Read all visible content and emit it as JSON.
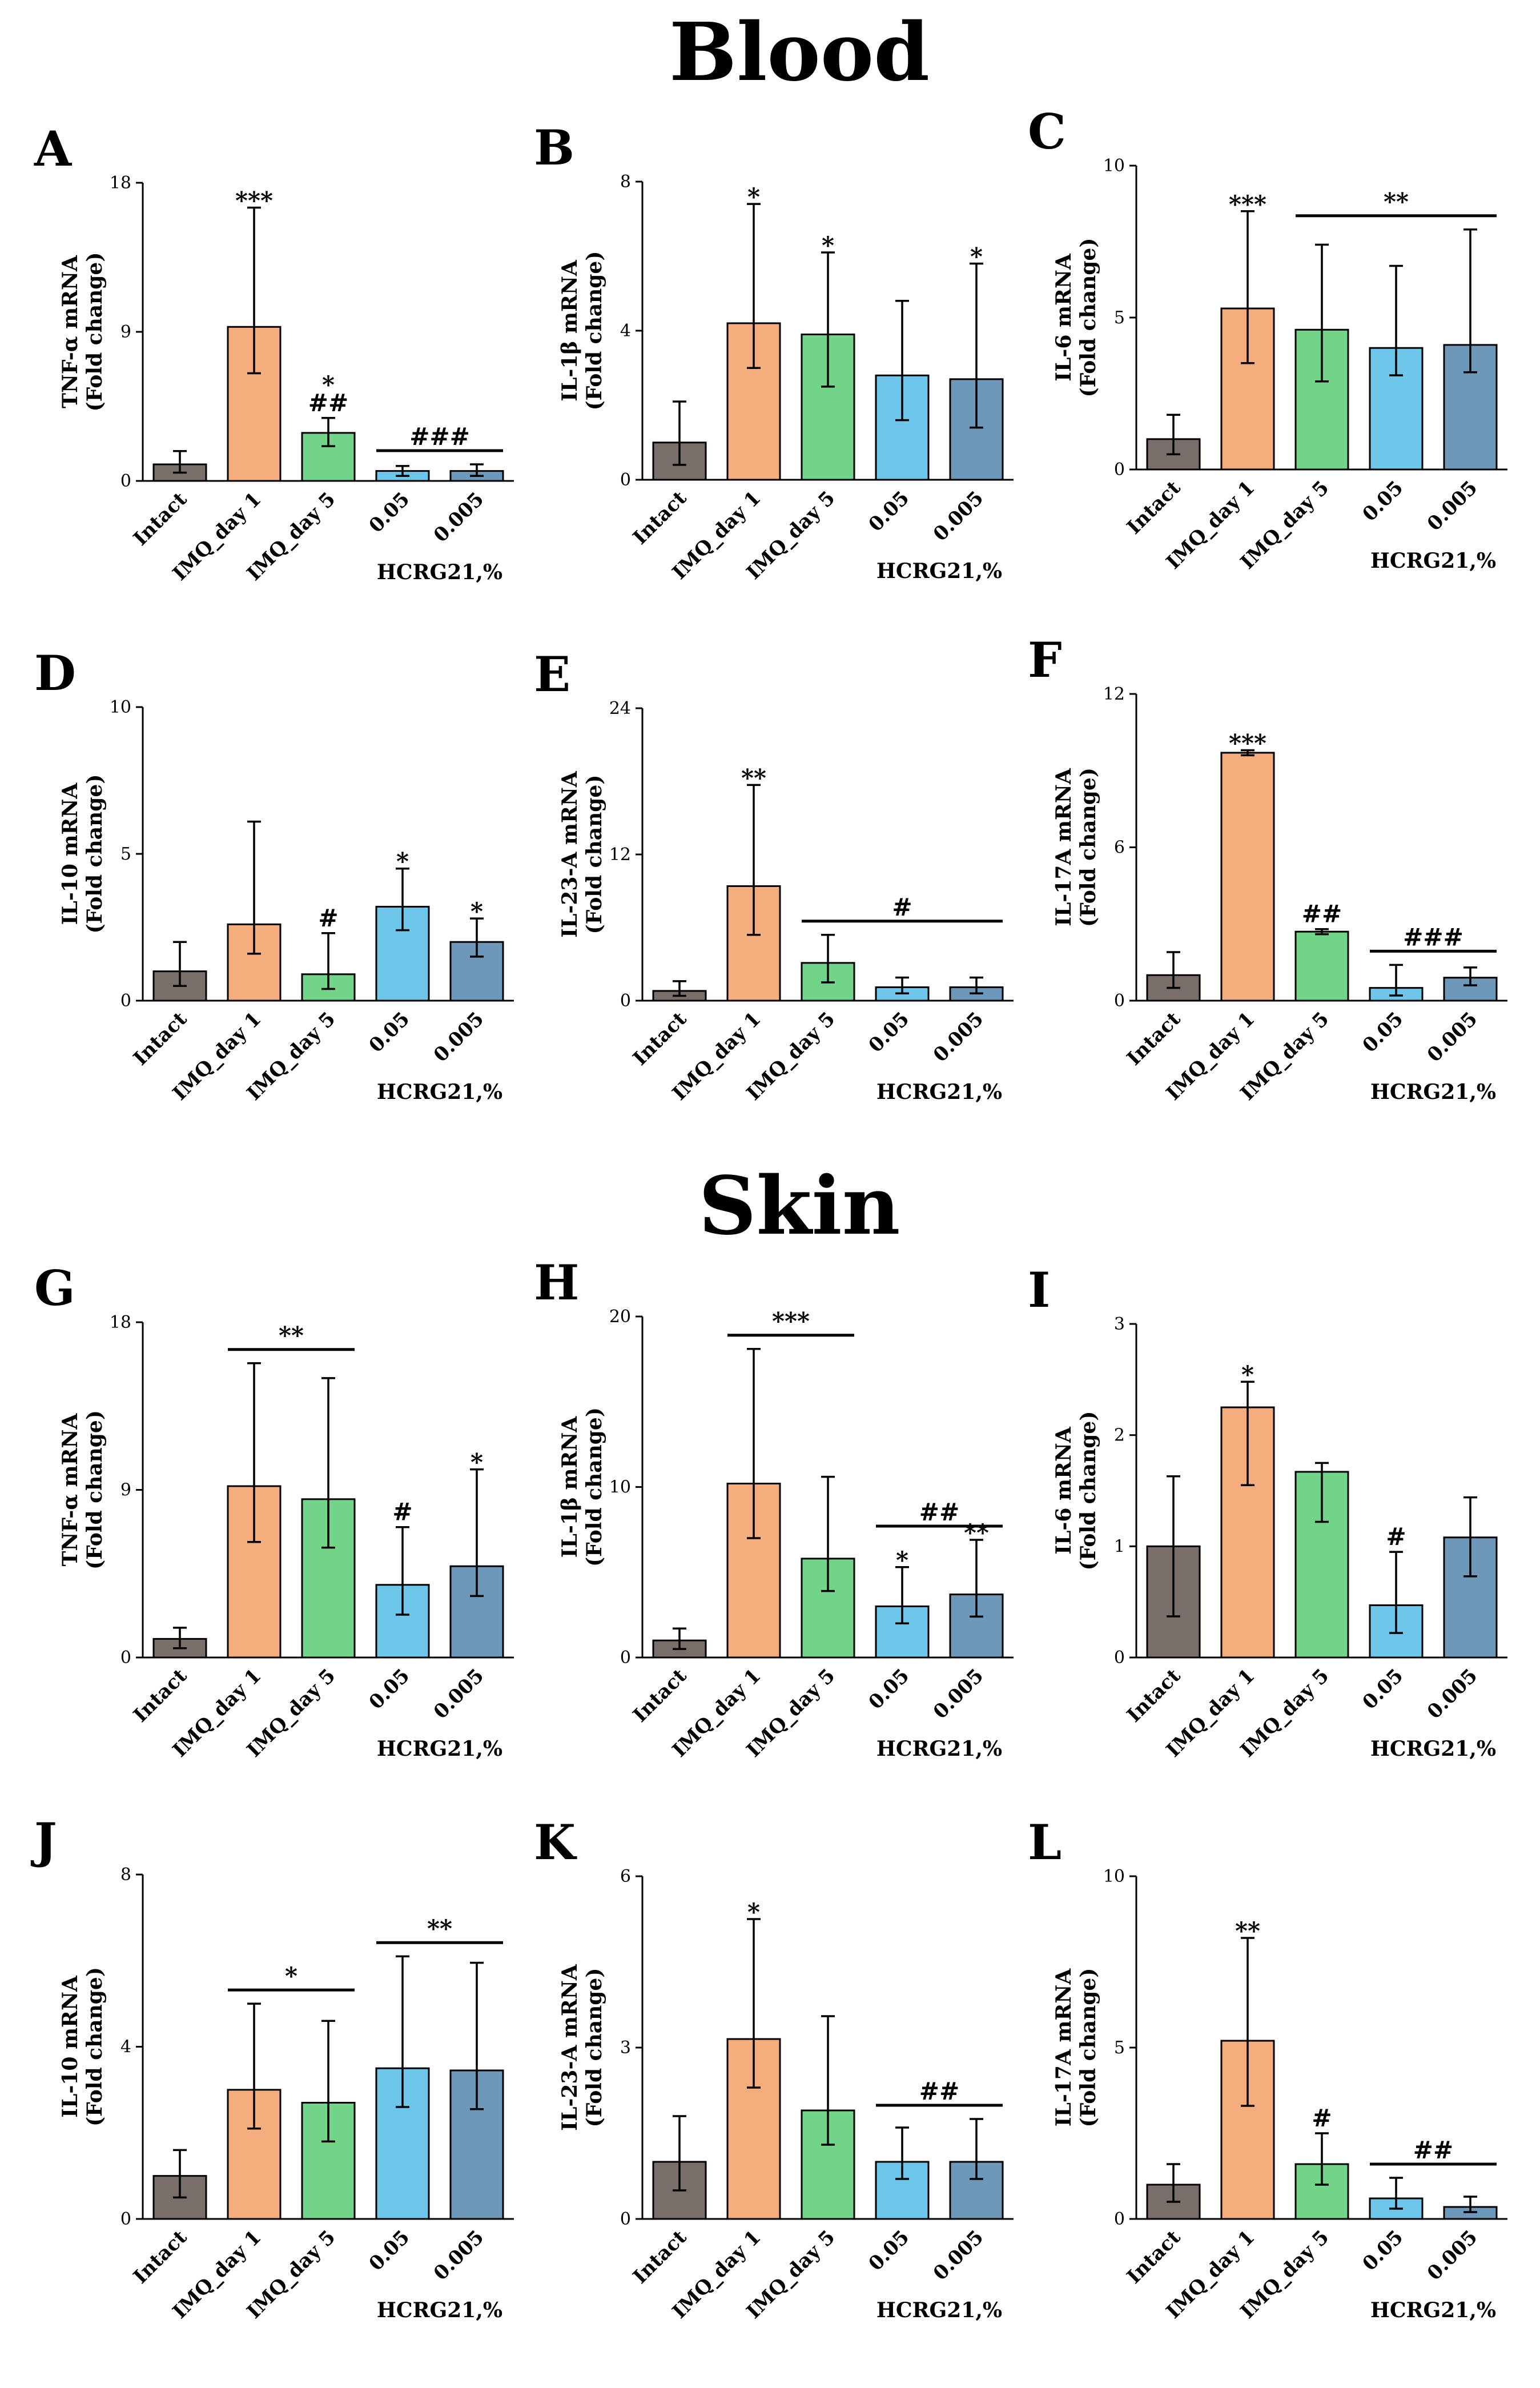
{
  "sections": [
    {
      "title": "Blood"
    },
    {
      "title": "Skin"
    }
  ],
  "chart_data": [
    {
      "panel": "A",
      "type": "bar",
      "ylabel_line1": "TNF-α mRNA",
      "ylabel_line2": "(Fold change)",
      "categories": [
        "Intact",
        "IMQ_day 1",
        "IMQ_day 5",
        "0.05",
        "0.005"
      ],
      "group_label": "HCRG21,%",
      "values": [
        1.0,
        9.3,
        2.9,
        0.6,
        0.6
      ],
      "err_low": [
        0.5,
        2.8,
        0.8,
        0.3,
        0.3
      ],
      "err_high": [
        0.8,
        7.2,
        0.9,
        0.3,
        0.4
      ],
      "ylim": [
        0,
        18
      ],
      "yticks": [
        "0",
        "9",
        "18"
      ],
      "stars": [
        "",
        "***",
        "*",
        "",
        ""
      ],
      "hashes": [
        "",
        "",
        "##",
        "",
        ""
      ],
      "brackets": [
        {
          "from": 3,
          "to": 4,
          "label": "###"
        }
      ]
    },
    {
      "panel": "B",
      "type": "bar",
      "ylabel_line1": "IL-1β mRNA",
      "ylabel_line2": "(Fold change)",
      "categories": [
        "Intact",
        "IMQ_day 1",
        "IMQ_day 5",
        "0.05",
        "0.005"
      ],
      "group_label": "HCRG21,%",
      "values": [
        1.0,
        4.2,
        3.9,
        2.8,
        2.7
      ],
      "err_low": [
        0.6,
        1.2,
        1.4,
        1.2,
        1.3
      ],
      "err_high": [
        1.1,
        3.2,
        2.2,
        2.0,
        3.1
      ],
      "ylim": [
        0,
        8
      ],
      "yticks": [
        "0",
        "4",
        "8"
      ],
      "stars": [
        "",
        "*",
        "*",
        "",
        "*"
      ],
      "hashes": [
        "",
        "",
        "",
        "",
        ""
      ],
      "brackets": []
    },
    {
      "panel": "C",
      "type": "bar",
      "ylabel_line1": "IL-6 mRNA",
      "ylabel_line2": "(Fold change)",
      "categories": [
        "Intact",
        "IMQ_day 1",
        "IMQ_day 5",
        "0.05",
        "0.005"
      ],
      "group_label": "HCRG21,%",
      "values": [
        1.0,
        5.3,
        4.6,
        4.0,
        4.1
      ],
      "err_low": [
        0.5,
        1.8,
        1.7,
        0.9,
        0.9
      ],
      "err_high": [
        0.8,
        3.2,
        2.8,
        2.7,
        3.8
      ],
      "ylim": [
        0,
        10
      ],
      "yticks": [
        "0",
        "5",
        "10"
      ],
      "stars": [
        "",
        "***",
        "",
        "",
        ""
      ],
      "hashes": [
        "",
        "",
        "",
        "",
        ""
      ],
      "brackets": [
        {
          "from": 2,
          "to": 4,
          "label": "**"
        }
      ]
    },
    {
      "panel": "D",
      "type": "bar",
      "ylabel_line1": "IL-10 mRNA",
      "ylabel_line2": "(Fold change)",
      "categories": [
        "Intact",
        "IMQ_day 1",
        "IMQ_day 5",
        "0.05",
        "0.005"
      ],
      "group_label": "HCRG21,%",
      "values": [
        1.0,
        2.6,
        0.9,
        3.2,
        2.0
      ],
      "err_low": [
        0.5,
        1.0,
        0.5,
        0.8,
        0.5
      ],
      "err_high": [
        1.0,
        3.5,
        1.4,
        1.3,
        0.8
      ],
      "ylim": [
        0,
        10
      ],
      "yticks": [
        "0",
        "5",
        "10"
      ],
      "stars": [
        "",
        "",
        "",
        "*",
        "*"
      ],
      "hashes": [
        "",
        "",
        "#",
        "",
        ""
      ],
      "brackets": []
    },
    {
      "panel": "E",
      "type": "bar",
      "ylabel_line1": "IL-23-A mRNA",
      "ylabel_line2": "(Fold change)",
      "categories": [
        "Intact",
        "IMQ_day 1",
        "IMQ_day 5",
        "0.05",
        "0.005"
      ],
      "group_label": "HCRG21,%",
      "values": [
        0.8,
        9.4,
        3.1,
        1.1,
        1.1
      ],
      "err_low": [
        0.4,
        4.0,
        1.6,
        0.5,
        0.5
      ],
      "err_high": [
        0.8,
        8.3,
        2.3,
        0.8,
        0.8
      ],
      "ylim": [
        0,
        24
      ],
      "yticks": [
        "0",
        "12",
        "24"
      ],
      "stars": [
        "",
        "**",
        "",
        "",
        ""
      ],
      "hashes": [
        "",
        "",
        "",
        "",
        ""
      ],
      "brackets": [
        {
          "from": 2,
          "to": 4,
          "label": "#"
        }
      ]
    },
    {
      "panel": "F",
      "type": "bar",
      "ylabel_line1": "IL-17A mRNA",
      "ylabel_line2": "(Fold change)",
      "categories": [
        "Intact",
        "IMQ_day 1",
        "IMQ_day 5",
        "0.05",
        "0.005"
      ],
      "group_label": "HCRG21,%",
      "values": [
        1.0,
        9.7,
        2.7,
        0.5,
        0.9
      ],
      "err_low": [
        0.5,
        0.1,
        0.1,
        0.3,
        0.3
      ],
      "err_high": [
        0.9,
        0.1,
        0.1,
        0.9,
        0.4
      ],
      "ylim": [
        0,
        12
      ],
      "yticks": [
        "0",
        "6",
        "12"
      ],
      "stars": [
        "",
        "***",
        "",
        "",
        ""
      ],
      "hashes": [
        "",
        "",
        "##",
        "",
        ""
      ],
      "brackets": [
        {
          "from": 3,
          "to": 4,
          "label": "###"
        }
      ]
    },
    {
      "panel": "G",
      "type": "bar",
      "ylabel_line1": "TNF-α mRNA",
      "ylabel_line2": "(Fold change)",
      "categories": [
        "Intact",
        "IMQ_day 1",
        "IMQ_day 5",
        "0.05",
        "0.005"
      ],
      "group_label": "HCRG21,%",
      "values": [
        1.0,
        9.2,
        8.5,
        3.9,
        4.9
      ],
      "err_low": [
        0.5,
        3.0,
        2.6,
        1.6,
        1.6
      ],
      "err_high": [
        0.6,
        6.6,
        6.5,
        3.1,
        5.2
      ],
      "ylim": [
        0,
        18
      ],
      "yticks": [
        "0",
        "9",
        "18"
      ],
      "stars": [
        "",
        "",
        "",
        "",
        "*"
      ],
      "hashes": [
        "",
        "",
        "",
        "#",
        ""
      ],
      "brackets": [
        {
          "from": 1,
          "to": 2,
          "label": "**"
        }
      ]
    },
    {
      "panel": "H",
      "type": "bar",
      "ylabel_line1": "IL-1β mRNA",
      "ylabel_line2": "(Fold change)",
      "categories": [
        "Intact",
        "IMQ_day 1",
        "IMQ_day 5",
        "0.05",
        "0.005"
      ],
      "group_label": "HCRG21,%",
      "values": [
        1.0,
        10.2,
        5.8,
        3.0,
        3.7
      ],
      "err_low": [
        0.5,
        3.2,
        1.9,
        1.0,
        1.3
      ],
      "err_high": [
        0.7,
        7.9,
        4.8,
        2.3,
        3.2
      ],
      "ylim": [
        0,
        20
      ],
      "yticks": [
        "0",
        "10",
        "20"
      ],
      "stars": [
        "",
        "",
        "",
        "*",
        "**"
      ],
      "hashes": [
        "",
        "",
        "",
        "",
        ""
      ],
      "brackets": [
        {
          "from": 1,
          "to": 2,
          "label": "***"
        },
        {
          "from": 3,
          "to": 4,
          "label": "##"
        }
      ]
    },
    {
      "panel": "I",
      "type": "bar",
      "ylabel_line1": "IL-6 mRNA",
      "ylabel_line2": "(Fold change)",
      "categories": [
        "Intact",
        "IMQ_day 1",
        "IMQ_day 5",
        "0.05",
        "0.005"
      ],
      "group_label": "HCRG21,%",
      "values": [
        1.0,
        2.25,
        1.67,
        0.47,
        1.08
      ],
      "err_low": [
        0.63,
        0.7,
        0.45,
        0.25,
        0.35
      ],
      "err_high": [
        0.63,
        0.23,
        0.08,
        0.48,
        0.36
      ],
      "ylim": [
        0,
        3
      ],
      "yticks": [
        "0",
        "1",
        "2",
        "3"
      ],
      "stars": [
        "",
        "*",
        "",
        "",
        ""
      ],
      "hashes": [
        "",
        "",
        "",
        "#",
        ""
      ],
      "brackets": []
    },
    {
      "panel": "J",
      "type": "bar",
      "ylabel_line1": "IL-10 mRNA",
      "ylabel_line2": "(Fold change)",
      "categories": [
        "Intact",
        "IMQ_day 1",
        "IMQ_day 5",
        "0.05",
        "0.005"
      ],
      "group_label": "HCRG21,%",
      "values": [
        1.0,
        3.0,
        2.7,
        3.5,
        3.45
      ],
      "err_low": [
        0.5,
        0.9,
        0.9,
        0.9,
        0.9
      ],
      "err_high": [
        0.6,
        2.0,
        1.9,
        2.6,
        2.5
      ],
      "ylim": [
        0,
        8
      ],
      "yticks": [
        "0",
        "4",
        "8"
      ],
      "stars": [
        "",
        "",
        "",
        "",
        ""
      ],
      "hashes": [
        "",
        "",
        "",
        "",
        ""
      ],
      "brackets": [
        {
          "from": 1,
          "to": 2,
          "label": "*"
        },
        {
          "from": 3,
          "to": 4,
          "label": "**"
        }
      ]
    },
    {
      "panel": "K",
      "type": "bar",
      "ylabel_line1": "IL-23-A mRNA",
      "ylabel_line2": "(Fold change)",
      "categories": [
        "Intact",
        "IMQ_day 1",
        "IMQ_day 5",
        "0.05",
        "0.005"
      ],
      "group_label": "HCRG21,%",
      "values": [
        1.0,
        3.15,
        1.9,
        1.0,
        1.0
      ],
      "err_low": [
        0.5,
        0.85,
        0.6,
        0.3,
        0.3
      ],
      "err_high": [
        0.8,
        2.1,
        1.65,
        0.6,
        0.75
      ],
      "ylim": [
        0,
        6
      ],
      "yticks": [
        "0",
        "3",
        "6"
      ],
      "stars": [
        "",
        "*",
        "",
        "",
        ""
      ],
      "hashes": [
        "",
        "",
        "",
        "",
        ""
      ],
      "brackets": [
        {
          "from": 3,
          "to": 4,
          "label": "##"
        }
      ]
    },
    {
      "panel": "L",
      "type": "bar",
      "ylabel_line1": "IL-17A mRNA",
      "ylabel_line2": "(Fold change)",
      "categories": [
        "Intact",
        "IMQ_day 1",
        "IMQ_day 5",
        "0.05",
        "0.005"
      ],
      "group_label": "HCRG21,%",
      "values": [
        1.0,
        5.2,
        1.6,
        0.6,
        0.35
      ],
      "err_low": [
        0.5,
        1.9,
        0.6,
        0.3,
        0.15
      ],
      "err_high": [
        0.6,
        3.0,
        0.9,
        0.6,
        0.3
      ],
      "ylim": [
        0,
        10
      ],
      "yticks": [
        "0",
        "5",
        "10"
      ],
      "stars": [
        "",
        "**",
        "",
        "",
        ""
      ],
      "hashes": [
        "",
        "",
        "#",
        "",
        ""
      ],
      "brackets": [
        {
          "from": 3,
          "to": 4,
          "label": "##"
        }
      ]
    }
  ],
  "bar_colors": [
    "#7a6e6a",
    "#f6ad7d",
    "#72d488",
    "#6ec6ea",
    "#6d98ba"
  ]
}
